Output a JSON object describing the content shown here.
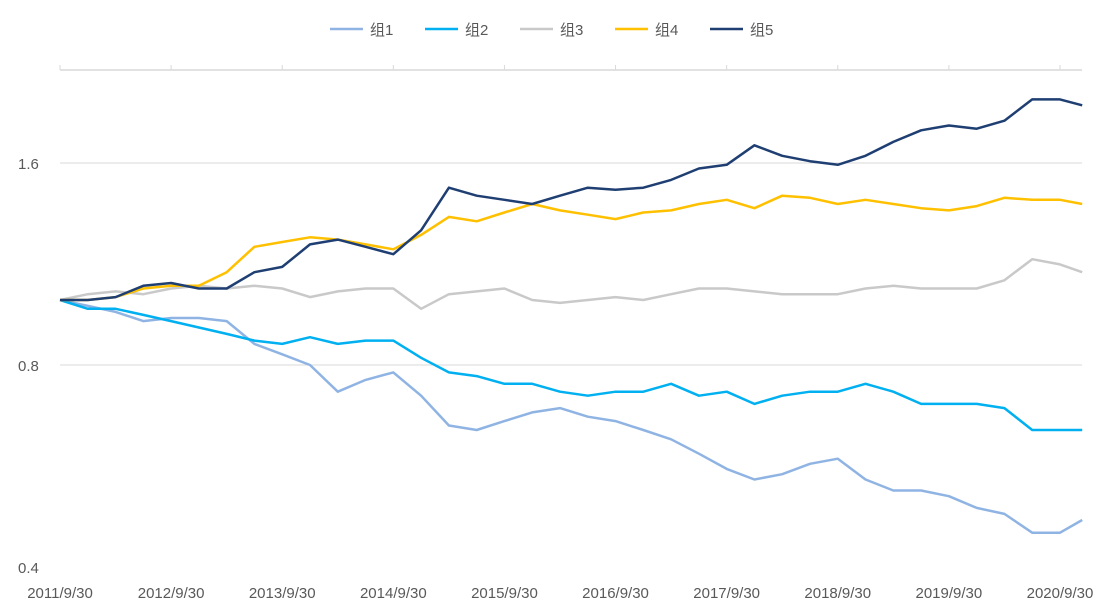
{
  "chart_data": {
    "type": "line",
    "title": "",
    "xlabel": "",
    "ylabel": "",
    "y_scale": "log2",
    "ylim": [
      0.4,
      2.2
    ],
    "xlim": [
      2011.75,
      2020.95
    ],
    "grid": true,
    "legend_position": "top",
    "y_ticks": [
      {
        "value": 0.4,
        "label": "0.4"
      },
      {
        "value": 0.8,
        "label": "0.8"
      },
      {
        "value": 1.6,
        "label": "1.6"
      }
    ],
    "x_ticks": [
      {
        "value": 2011.75,
        "label": "2011/9/30"
      },
      {
        "value": 2012.75,
        "label": "2012/9/30"
      },
      {
        "value": 2013.75,
        "label": "2013/9/30"
      },
      {
        "value": 2014.75,
        "label": "2014/9/30"
      },
      {
        "value": 2015.75,
        "label": "2015/9/30"
      },
      {
        "value": 2016.75,
        "label": "2016/9/30"
      },
      {
        "value": 2017.75,
        "label": "2017/9/30"
      },
      {
        "value": 2018.75,
        "label": "2018/9/30"
      },
      {
        "value": 2019.75,
        "label": "2019/9/30"
      },
      {
        "value": 2020.75,
        "label": "2020/9/30"
      }
    ],
    "x": [
      2011.75,
      2012.0,
      2012.25,
      2012.5,
      2012.75,
      2013.0,
      2013.25,
      2013.5,
      2013.75,
      2014.0,
      2014.25,
      2014.5,
      2014.75,
      2015.0,
      2015.25,
      2015.5,
      2015.75,
      2016.0,
      2016.25,
      2016.5,
      2016.75,
      2017.0,
      2017.25,
      2017.5,
      2017.75,
      2018.0,
      2018.25,
      2018.5,
      2018.75,
      2019.0,
      2019.25,
      2019.5,
      2019.75,
      2020.0,
      2020.25,
      2020.5,
      2020.75,
      2020.95
    ],
    "series": [
      {
        "name": "组1",
        "color": "#8FB4E3",
        "values": [
          1.0,
          0.98,
          0.96,
          0.93,
          0.94,
          0.94,
          0.93,
          0.86,
          0.83,
          0.8,
          0.73,
          0.76,
          0.78,
          0.72,
          0.65,
          0.64,
          0.66,
          0.68,
          0.69,
          0.67,
          0.66,
          0.64,
          0.62,
          0.59,
          0.56,
          0.54,
          0.55,
          0.57,
          0.58,
          0.54,
          0.52,
          0.52,
          0.51,
          0.49,
          0.48,
          0.45,
          0.45,
          0.47
        ]
      },
      {
        "name": "组2",
        "color": "#00B0F0",
        "values": [
          1.0,
          0.97,
          0.97,
          0.95,
          0.93,
          0.91,
          0.89,
          0.87,
          0.86,
          0.88,
          0.86,
          0.87,
          0.87,
          0.82,
          0.78,
          0.77,
          0.75,
          0.75,
          0.73,
          0.72,
          0.73,
          0.73,
          0.75,
          0.72,
          0.73,
          0.7,
          0.72,
          0.73,
          0.73,
          0.75,
          0.73,
          0.7,
          0.7,
          0.7,
          0.69,
          0.64,
          0.64,
          0.64
        ]
      },
      {
        "name": "组3",
        "color": "#C9C9C9",
        "values": [
          1.0,
          1.02,
          1.03,
          1.02,
          1.04,
          1.05,
          1.04,
          1.05,
          1.04,
          1.01,
          1.03,
          1.04,
          1.04,
          0.97,
          1.02,
          1.03,
          1.04,
          1.0,
          0.99,
          1.0,
          1.01,
          1.0,
          1.02,
          1.04,
          1.04,
          1.03,
          1.02,
          1.02,
          1.02,
          1.04,
          1.05,
          1.04,
          1.04,
          1.04,
          1.07,
          1.15,
          1.13,
          1.1
        ]
      },
      {
        "name": "组4",
        "color": "#FFC000",
        "values": [
          1.0,
          1.0,
          1.01,
          1.04,
          1.05,
          1.05,
          1.1,
          1.2,
          1.22,
          1.24,
          1.23,
          1.21,
          1.19,
          1.25,
          1.33,
          1.31,
          1.35,
          1.39,
          1.36,
          1.34,
          1.32,
          1.35,
          1.36,
          1.39,
          1.41,
          1.37,
          1.43,
          1.42,
          1.39,
          1.41,
          1.39,
          1.37,
          1.36,
          1.38,
          1.42,
          1.41,
          1.41,
          1.39
        ]
      },
      {
        "name": "组5",
        "color": "#1F3F73",
        "values": [
          1.0,
          1.0,
          1.01,
          1.05,
          1.06,
          1.04,
          1.04,
          1.1,
          1.12,
          1.21,
          1.23,
          1.2,
          1.17,
          1.27,
          1.47,
          1.43,
          1.41,
          1.39,
          1.43,
          1.47,
          1.46,
          1.47,
          1.51,
          1.57,
          1.59,
          1.7,
          1.64,
          1.61,
          1.59,
          1.64,
          1.72,
          1.79,
          1.82,
          1.8,
          1.85,
          1.99,
          1.99,
          1.95
        ]
      }
    ]
  }
}
